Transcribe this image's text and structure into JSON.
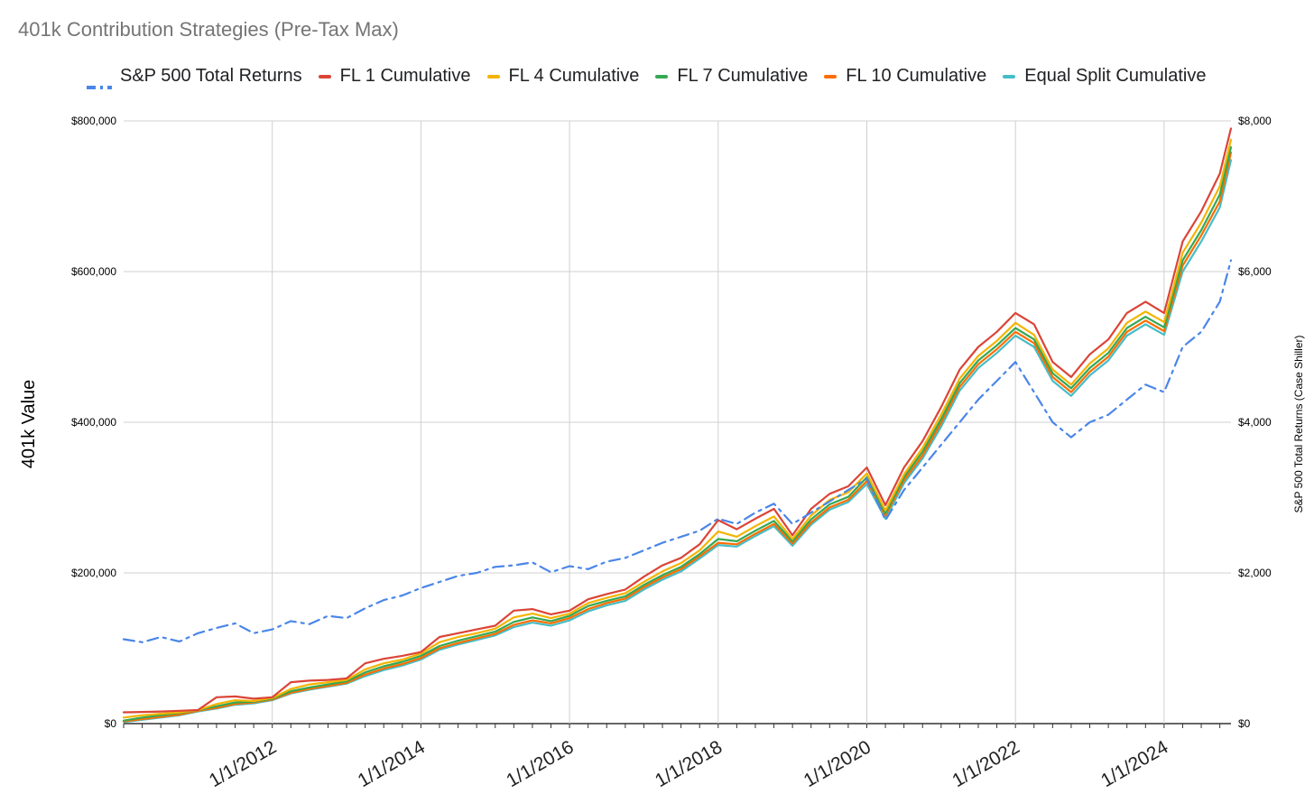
{
  "chart_data": {
    "type": "line",
    "title": "401k Contribution Strategies (Pre-Tax Max)",
    "ylabel": "401k Value",
    "y2label": "S&P 500 Total Returns (Case Shiller)",
    "xlabel": "",
    "ylim": [
      0,
      800000
    ],
    "y2lim": [
      0,
      8000
    ],
    "xlim": [
      2010.0,
      2024.9
    ],
    "y_ticks": [
      {
        "value": 0,
        "label": "$0"
      },
      {
        "value": 200000,
        "label": "$200,000"
      },
      {
        "value": 400000,
        "label": "$400,000"
      },
      {
        "value": 600000,
        "label": "$600,000"
      },
      {
        "value": 800000,
        "label": "$800,000"
      }
    ],
    "y2_ticks": [
      {
        "value": 0,
        "label": "$0"
      },
      {
        "value": 2000,
        "label": "$2,000"
      },
      {
        "value": 4000,
        "label": "$4,000"
      },
      {
        "value": 6000,
        "label": "$6,000"
      },
      {
        "value": 8000,
        "label": "$8,000"
      }
    ],
    "x_ticks": [
      {
        "value": 2012,
        "label": "1/1/2012"
      },
      {
        "value": 2014,
        "label": "1/1/2014"
      },
      {
        "value": 2016,
        "label": "1/1/2016"
      },
      {
        "value": 2018,
        "label": "1/1/2018"
      },
      {
        "value": 2020,
        "label": "1/1/2020"
      },
      {
        "value": 2022,
        "label": "1/1/2022"
      },
      {
        "value": 2024,
        "label": "1/1/2024"
      }
    ],
    "legend_position": "top",
    "grid": true,
    "series": [
      {
        "name": "S&P 500 Total Returns",
        "axis": "right",
        "color": "#4a86e8",
        "dashed": true,
        "x": [
          2010.0,
          2010.25,
          2010.5,
          2010.75,
          2011.0,
          2011.25,
          2011.5,
          2011.75,
          2012.0,
          2012.25,
          2012.5,
          2012.75,
          2013.0,
          2013.25,
          2013.5,
          2013.75,
          2014.0,
          2014.25,
          2014.5,
          2014.75,
          2015.0,
          2015.25,
          2015.5,
          2015.75,
          2016.0,
          2016.25,
          2016.5,
          2016.75,
          2017.0,
          2017.25,
          2017.5,
          2017.75,
          2018.0,
          2018.25,
          2018.5,
          2018.75,
          2019.0,
          2019.25,
          2019.5,
          2019.75,
          2020.0,
          2020.25,
          2020.5,
          2020.75,
          2021.0,
          2021.25,
          2021.5,
          2021.75,
          2022.0,
          2022.25,
          2022.5,
          2022.75,
          2023.0,
          2023.25,
          2023.5,
          2023.75,
          2024.0,
          2024.25,
          2024.5,
          2024.75,
          2024.9
        ],
        "values": [
          1120,
          1080,
          1150,
          1090,
          1200,
          1270,
          1330,
          1200,
          1250,
          1360,
          1320,
          1430,
          1400,
          1530,
          1640,
          1700,
          1800,
          1880,
          1960,
          2000,
          2080,
          2100,
          2140,
          2010,
          2090,
          2050,
          2150,
          2200,
          2300,
          2400,
          2480,
          2560,
          2720,
          2650,
          2800,
          2920,
          2650,
          2800,
          2950,
          3100,
          3250,
          2700,
          3100,
          3400,
          3700,
          4000,
          4300,
          4550,
          4800,
          4400,
          4000,
          3800,
          4000,
          4100,
          4300,
          4500,
          4400,
          5000,
          5200,
          5600,
          6150
        ]
      },
      {
        "name": "FL 1 Cumulative",
        "axis": "left",
        "color": "#db4437",
        "dashed": false,
        "x": [
          2010.0,
          2010.25,
          2010.5,
          2010.75,
          2011.0,
          2011.25,
          2011.5,
          2011.75,
          2012.0,
          2012.25,
          2012.5,
          2012.75,
          2013.0,
          2013.25,
          2013.5,
          2013.75,
          2014.0,
          2014.25,
          2014.5,
          2014.75,
          2015.0,
          2015.25,
          2015.5,
          2015.75,
          2016.0,
          2016.25,
          2016.5,
          2016.75,
          2017.0,
          2017.25,
          2017.5,
          2017.75,
          2018.0,
          2018.25,
          2018.5,
          2018.75,
          2019.0,
          2019.25,
          2019.5,
          2019.75,
          2020.0,
          2020.25,
          2020.5,
          2020.75,
          2021.0,
          2021.25,
          2021.5,
          2021.75,
          2022.0,
          2022.25,
          2022.5,
          2022.75,
          2023.0,
          2023.25,
          2023.5,
          2023.75,
          2024.0,
          2024.25,
          2024.5,
          2024.75,
          2024.9
        ],
        "values": [
          15000,
          15500,
          16000,
          17000,
          18000,
          35000,
          36000,
          33000,
          35000,
          55000,
          57000,
          58000,
          60000,
          80000,
          86000,
          90000,
          95000,
          115000,
          120000,
          125000,
          130000,
          150000,
          152000,
          145000,
          150000,
          165000,
          172000,
          178000,
          195000,
          210000,
          220000,
          238000,
          270000,
          258000,
          272000,
          285000,
          250000,
          285000,
          305000,
          315000,
          340000,
          290000,
          340000,
          375000,
          420000,
          470000,
          500000,
          520000,
          545000,
          530000,
          480000,
          460000,
          490000,
          510000,
          545000,
          560000,
          545000,
          640000,
          680000,
          730000,
          790000
        ]
      },
      {
        "name": "FL 4 Cumulative",
        "axis": "left",
        "color": "#f4b400",
        "dashed": false,
        "x": [
          2010.0,
          2010.25,
          2010.5,
          2010.75,
          2011.0,
          2011.25,
          2011.5,
          2011.75,
          2012.0,
          2012.25,
          2012.5,
          2012.75,
          2013.0,
          2013.25,
          2013.5,
          2013.75,
          2014.0,
          2014.25,
          2014.5,
          2014.75,
          2015.0,
          2015.25,
          2015.5,
          2015.75,
          2016.0,
          2016.25,
          2016.5,
          2016.75,
          2017.0,
          2017.25,
          2017.5,
          2017.75,
          2018.0,
          2018.25,
          2018.5,
          2018.75,
          2019.0,
          2019.25,
          2019.5,
          2019.75,
          2020.0,
          2020.25,
          2020.5,
          2020.75,
          2021.0,
          2021.25,
          2021.5,
          2021.75,
          2022.0,
          2022.25,
          2022.5,
          2022.75,
          2023.0,
          2023.25,
          2023.5,
          2023.75,
          2024.0,
          2024.25,
          2024.5,
          2024.75,
          2024.9
        ],
        "values": [
          8000,
          11000,
          13000,
          15000,
          18000,
          26000,
          31000,
          30000,
          34000,
          46000,
          52000,
          55000,
          58000,
          72000,
          80000,
          85000,
          93000,
          108000,
          115000,
          120000,
          126000,
          141000,
          146000,
          140000,
          146000,
          160000,
          167000,
          173000,
          188000,
          202000,
          213000,
          230000,
          255000,
          248000,
          262000,
          275000,
          245000,
          276000,
          297000,
          307000,
          332000,
          283000,
          331000,
          366000,
          410000,
          458000,
          488000,
          508000,
          532000,
          516000,
          470000,
          450000,
          478000,
          498000,
          532000,
          547000,
          533000,
          625000,
          665000,
          713000,
          775000
        ]
      },
      {
        "name": "FL 7 Cumulative",
        "axis": "left",
        "color": "#34a853",
        "dashed": false,
        "x": [
          2010.0,
          2010.25,
          2010.5,
          2010.75,
          2011.0,
          2011.25,
          2011.5,
          2011.75,
          2012.0,
          2012.25,
          2012.5,
          2012.75,
          2013.0,
          2013.25,
          2013.5,
          2013.75,
          2014.0,
          2014.25,
          2014.5,
          2014.75,
          2015.0,
          2015.25,
          2015.5,
          2015.75,
          2016.0,
          2016.25,
          2016.5,
          2016.75,
          2017.0,
          2017.25,
          2017.5,
          2017.75,
          2018.0,
          2018.25,
          2018.5,
          2018.75,
          2019.0,
          2019.25,
          2019.5,
          2019.75,
          2020.0,
          2020.25,
          2020.5,
          2020.75,
          2021.0,
          2021.25,
          2021.5,
          2021.75,
          2022.0,
          2022.25,
          2022.5,
          2022.75,
          2023.0,
          2023.25,
          2023.5,
          2023.75,
          2024.0,
          2024.25,
          2024.5,
          2024.75,
          2024.9
        ],
        "values": [
          4000,
          8000,
          11000,
          14000,
          18000,
          23000,
          28000,
          29000,
          33000,
          43000,
          48000,
          52000,
          56000,
          68000,
          76000,
          82000,
          90000,
          103000,
          110000,
          116000,
          122000,
          135000,
          141000,
          136000,
          143000,
          156000,
          163000,
          169000,
          184000,
          197000,
          208000,
          225000,
          245000,
          242000,
          256000,
          269000,
          242000,
          271000,
          291000,
          301000,
          327000,
          279000,
          327000,
          361000,
          404000,
          452000,
          482000,
          502000,
          525000,
          510000,
          465000,
          445000,
          472000,
          492000,
          525000,
          540000,
          526000,
          615000,
          655000,
          702000,
          765000
        ]
      },
      {
        "name": "FL 10 Cumulative",
        "axis": "left",
        "color": "#ff6d01",
        "dashed": false,
        "x": [
          2010.0,
          2010.25,
          2010.5,
          2010.75,
          2011.0,
          2011.25,
          2011.5,
          2011.75,
          2012.0,
          2012.25,
          2012.5,
          2012.75,
          2013.0,
          2013.25,
          2013.5,
          2013.75,
          2014.0,
          2014.25,
          2014.5,
          2014.75,
          2015.0,
          2015.25,
          2015.5,
          2015.75,
          2016.0,
          2016.25,
          2016.5,
          2016.75,
          2017.0,
          2017.25,
          2017.5,
          2017.75,
          2018.0,
          2018.25,
          2018.5,
          2018.75,
          2019.0,
          2019.25,
          2019.5,
          2019.75,
          2020.0,
          2020.25,
          2020.5,
          2020.75,
          2021.0,
          2021.25,
          2021.5,
          2021.75,
          2022.0,
          2022.25,
          2022.5,
          2022.75,
          2023.0,
          2023.25,
          2023.5,
          2023.75,
          2024.0,
          2024.25,
          2024.5,
          2024.75,
          2024.9
        ],
        "values": [
          3000,
          6000,
          9000,
          12000,
          17000,
          21000,
          26000,
          28000,
          32000,
          41000,
          46000,
          50000,
          54000,
          65000,
          73000,
          79000,
          87000,
          100000,
          107000,
          113000,
          119000,
          131000,
          137000,
          133000,
          140000,
          152000,
          160000,
          166000,
          181000,
          194000,
          205000,
          222000,
          240000,
          238000,
          252000,
          265000,
          239000,
          267000,
          287000,
          297000,
          322000,
          276000,
          323000,
          356000,
          399000,
          447000,
          477000,
          497000,
          520000,
          505000,
          460000,
          440000,
          467000,
          487000,
          520000,
          535000,
          521000,
          608000,
          648000,
          693000,
          758000
        ]
      },
      {
        "name": "Equal Split Cumulative",
        "axis": "left",
        "color": "#46bdc6",
        "dashed": false,
        "x": [
          2010.0,
          2010.25,
          2010.5,
          2010.75,
          2011.0,
          2011.25,
          2011.5,
          2011.75,
          2012.0,
          2012.25,
          2012.5,
          2012.75,
          2013.0,
          2013.25,
          2013.5,
          2013.75,
          2014.0,
          2014.25,
          2014.5,
          2014.75,
          2015.0,
          2015.25,
          2015.5,
          2015.75,
          2016.0,
          2016.25,
          2016.5,
          2016.75,
          2017.0,
          2017.25,
          2017.5,
          2017.75,
          2018.0,
          2018.25,
          2018.5,
          2018.75,
          2019.0,
          2019.25,
          2019.5,
          2019.75,
          2020.0,
          2020.25,
          2020.5,
          2020.75,
          2021.0,
          2021.25,
          2021.5,
          2021.75,
          2022.0,
          2022.25,
          2022.5,
          2022.75,
          2023.0,
          2023.25,
          2023.5,
          2023.75,
          2024.0,
          2024.25,
          2024.5,
          2024.75,
          2024.9
        ],
        "values": [
          2000,
          5000,
          8000,
          11000,
          16000,
          20000,
          25000,
          27000,
          31000,
          40000,
          45000,
          49000,
          53000,
          63000,
          71000,
          77000,
          85000,
          98000,
          105000,
          111000,
          117000,
          128000,
          134000,
          130000,
          137000,
          149000,
          157000,
          163000,
          178000,
          191000,
          202000,
          219000,
          237000,
          235000,
          249000,
          262000,
          236000,
          264000,
          284000,
          294000,
          318000,
          272000,
          319000,
          352000,
          394000,
          442000,
          472000,
          492000,
          515000,
          500000,
          455000,
          435000,
          462000,
          482000,
          515000,
          530000,
          516000,
          600000,
          640000,
          685000,
          748000
        ]
      }
    ]
  }
}
